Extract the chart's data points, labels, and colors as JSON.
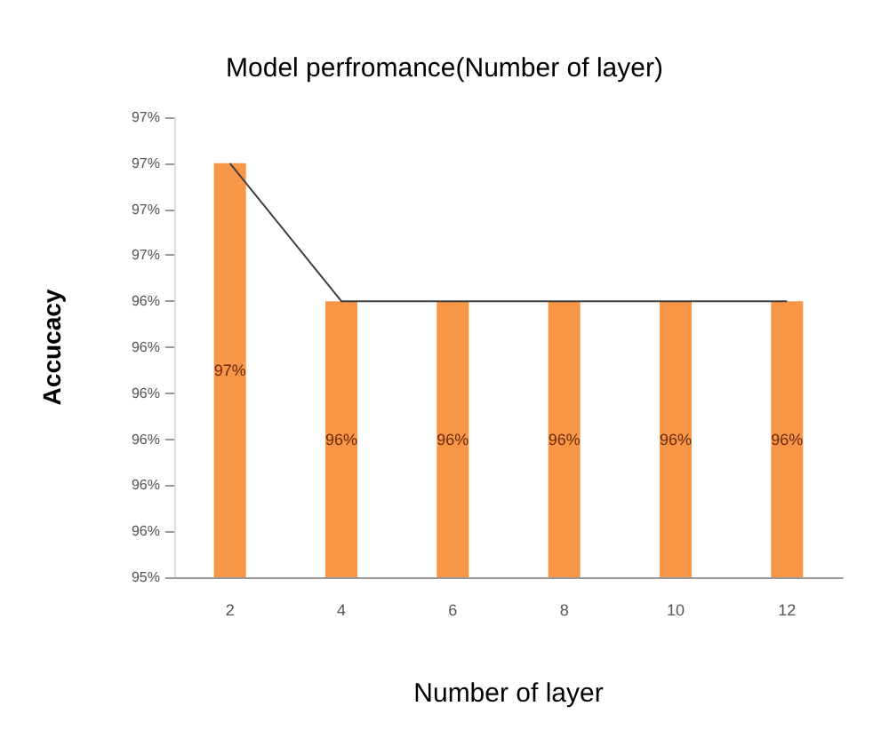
{
  "chart_data": {
    "type": "bar",
    "title": "Model perfromance(Number of layer)",
    "xlabel": "Number of layer",
    "ylabel": "Accucacy",
    "categories": [
      "2",
      "4",
      "6",
      "8",
      "10",
      "12"
    ],
    "series": [
      {
        "color": "#f79646",
        "values": [
          96.84,
          96.36,
          96.36,
          96.36,
          96.36,
          96.36
        ],
        "value_labels": [
          "97%",
          "96%",
          "96%",
          "96%",
          "96%",
          "96%"
        ]
      },
      {
        "type": "line",
        "color": "#404040",
        "values": [
          96.84,
          96.36,
          96.36,
          96.36,
          96.36,
          96.36
        ],
        "marker": "none",
        "line_style": "solid"
      }
    ],
    "ylim": [
      95.4,
      97.0
    ],
    "yticks": [
      {
        "value": 95.4,
        "label": "95%"
      },
      {
        "value": 95.56,
        "label": "96%"
      },
      {
        "value": 95.72,
        "label": "96%"
      },
      {
        "value": 95.88,
        "label": "96%"
      },
      {
        "value": 96.04,
        "label": "96%"
      },
      {
        "value": 96.2,
        "label": "96%"
      },
      {
        "value": 96.36,
        "label": "96%"
      },
      {
        "value": 96.52,
        "label": "97%"
      },
      {
        "value": 96.68,
        "label": "97%"
      },
      {
        "value": 96.84,
        "label": "97%"
      },
      {
        "value": 97.0,
        "label": "97%"
      }
    ],
    "grid": false
  }
}
